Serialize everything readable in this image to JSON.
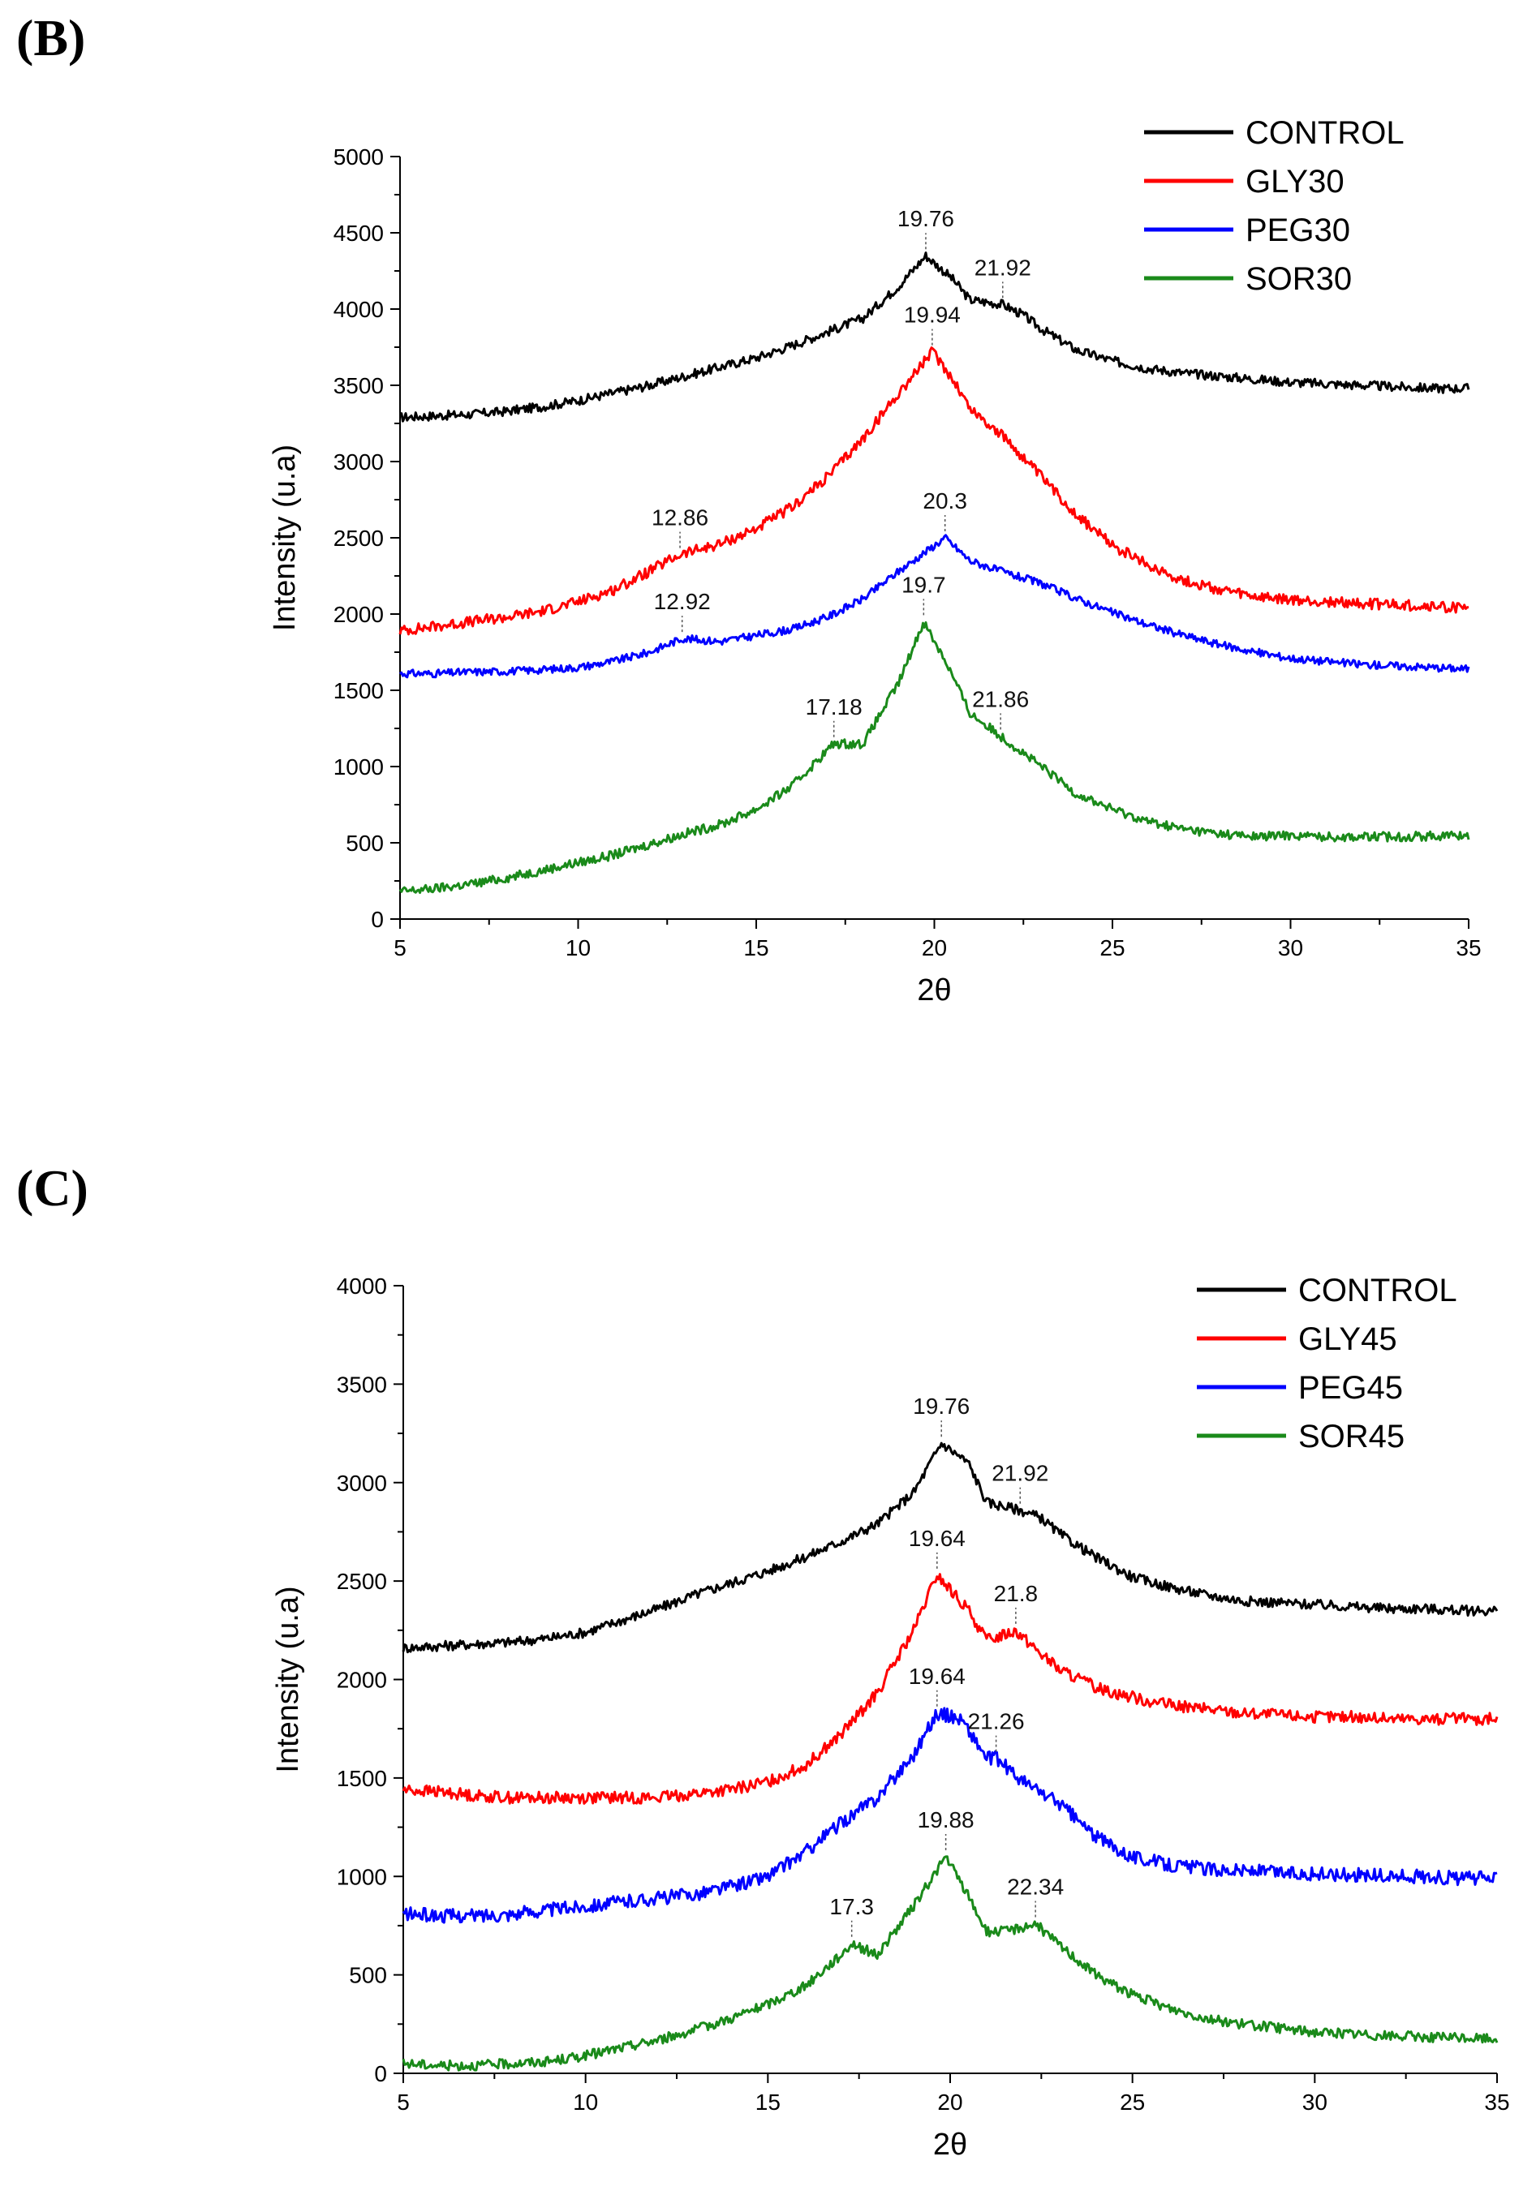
{
  "panels": [
    {
      "letter": "(B)"
    },
    {
      "letter": "(C)"
    }
  ],
  "chart_data": [
    {
      "type": "line",
      "panel": "(B)",
      "xlabel": "2θ",
      "ylabel": "Intensity (u.a)",
      "xlim": [
        5,
        35
      ],
      "ylim": [
        0,
        5000
      ],
      "xticks": [
        5,
        10,
        15,
        20,
        25,
        30,
        35
      ],
      "yticks": [
        0,
        500,
        1000,
        1500,
        2000,
        2500,
        3000,
        3500,
        4000,
        4500,
        5000
      ],
      "legend_position": "top-right",
      "series": [
        {
          "name": "CONTROL",
          "color": "#000000",
          "noise": 30,
          "x": [
            5,
            6,
            7,
            8,
            9,
            10,
            11,
            12,
            13,
            14,
            15,
            16,
            17,
            18,
            19,
            19.76,
            20.5,
            21,
            21.92,
            22.5,
            23,
            24,
            25,
            26,
            27,
            28,
            29,
            30,
            31,
            32,
            33,
            34,
            35
          ],
          "y": [
            3290,
            3300,
            3310,
            3330,
            3360,
            3400,
            3450,
            3500,
            3560,
            3620,
            3680,
            3760,
            3850,
            3940,
            4150,
            4350,
            4200,
            4060,
            4030,
            3960,
            3870,
            3730,
            3660,
            3610,
            3580,
            3560,
            3540,
            3520,
            3510,
            3500,
            3490,
            3480,
            3480
          ]
        },
        {
          "name": "GLY30",
          "color": "#ff0000",
          "noise": 35,
          "x": [
            5,
            6,
            7,
            8,
            9,
            10,
            11,
            12,
            12.86,
            14,
            15,
            16,
            17,
            18,
            19,
            19.94,
            20.5,
            21,
            22,
            23,
            24,
            25,
            26,
            27,
            28,
            29,
            30,
            31,
            32,
            33,
            34,
            35
          ],
          "y": [
            1890,
            1920,
            1950,
            1980,
            2020,
            2080,
            2160,
            2280,
            2390,
            2460,
            2560,
            2700,
            2900,
            3150,
            3450,
            3720,
            3550,
            3350,
            3150,
            2900,
            2650,
            2450,
            2320,
            2220,
            2160,
            2110,
            2090,
            2080,
            2070,
            2060,
            2050,
            2040
          ]
        },
        {
          "name": "PEG30",
          "color": "#0000ff",
          "noise": 25,
          "x": [
            5,
            6,
            7,
            8,
            9,
            10,
            11,
            12,
            12.92,
            14,
            15,
            16,
            17,
            18,
            19,
            20.3,
            21,
            22,
            23,
            24,
            25,
            26,
            27,
            28,
            29,
            30,
            31,
            32,
            33,
            34,
            35
          ],
          "y": [
            1610,
            1610,
            1620,
            1625,
            1635,
            1650,
            1690,
            1750,
            1840,
            1820,
            1860,
            1900,
            1980,
            2100,
            2280,
            2500,
            2350,
            2270,
            2200,
            2100,
            2010,
            1930,
            1860,
            1800,
            1750,
            1710,
            1690,
            1670,
            1660,
            1650,
            1640
          ]
        },
        {
          "name": "SOR30",
          "color": "#1a8a1a",
          "noise": 30,
          "x": [
            5,
            6,
            7,
            8,
            9,
            10,
            11,
            12,
            13,
            14,
            15,
            16,
            17.18,
            18,
            19,
            19.7,
            20.3,
            21,
            21.86,
            23,
            24,
            25,
            26,
            27,
            28,
            29,
            30,
            31,
            32,
            33,
            34,
            35
          ],
          "y": [
            180,
            200,
            230,
            270,
            320,
            370,
            420,
            490,
            560,
            620,
            720,
            870,
            1150,
            1150,
            1550,
            1950,
            1700,
            1350,
            1200,
            1000,
            820,
            720,
            640,
            590,
            560,
            540,
            550,
            540,
            540,
            540,
            545,
            550
          ]
        }
      ],
      "annotations": [
        {
          "text": "19.76",
          "x": 19.76,
          "series": 0
        },
        {
          "text": "21.92",
          "x": 21.92,
          "series": 0
        },
        {
          "text": "19.94",
          "x": 19.94,
          "series": 1
        },
        {
          "text": "12.86",
          "x": 12.86,
          "series": 1
        },
        {
          "text": "20.3",
          "x": 20.3,
          "series": 2
        },
        {
          "text": "12.92",
          "x": 12.92,
          "series": 2
        },
        {
          "text": "19.7",
          "x": 19.7,
          "series": 3
        },
        {
          "text": "17.18",
          "x": 17.18,
          "series": 3
        },
        {
          "text": "21.86",
          "x": 21.86,
          "series": 3
        }
      ]
    },
    {
      "type": "line",
      "panel": "(C)",
      "xlabel": "2θ",
      "ylabel": "Intensity (u.a)",
      "xlim": [
        5,
        35
      ],
      "ylim": [
        0,
        4000
      ],
      "xticks": [
        5,
        10,
        15,
        20,
        25,
        30,
        35
      ],
      "yticks": [
        0,
        500,
        1000,
        1500,
        2000,
        2500,
        3000,
        3500,
        4000
      ],
      "legend_position": "top-right",
      "series": [
        {
          "name": "CONTROL",
          "color": "#000000",
          "noise": 25,
          "x": [
            5,
            6,
            7,
            8,
            9,
            10,
            11,
            12,
            13,
            14,
            15,
            16,
            17,
            18,
            19,
            19.76,
            20.5,
            21,
            21.92,
            22.5,
            23,
            24,
            25,
            26,
            27,
            28,
            29,
            30,
            31,
            32,
            33,
            34,
            35
          ],
          "y": [
            2160,
            2170,
            2180,
            2190,
            2210,
            2240,
            2300,
            2360,
            2430,
            2490,
            2550,
            2620,
            2700,
            2790,
            2950,
            3200,
            3100,
            2900,
            2860,
            2820,
            2740,
            2620,
            2520,
            2470,
            2430,
            2400,
            2390,
            2380,
            2370,
            2360,
            2360,
            2350,
            2350
          ]
        },
        {
          "name": "GLY45",
          "color": "#ff0000",
          "noise": 30,
          "x": [
            5,
            6,
            7,
            8,
            9,
            10,
            11,
            12,
            13,
            14,
            15,
            16,
            17,
            18,
            19,
            19.64,
            20.5,
            21,
            21.8,
            22.5,
            23,
            24,
            25,
            26,
            27,
            28,
            29,
            30,
            31,
            32,
            33,
            34,
            35
          ],
          "y": [
            1440,
            1430,
            1410,
            1400,
            1400,
            1400,
            1400,
            1400,
            1420,
            1440,
            1480,
            1560,
            1720,
            1930,
            2250,
            2530,
            2350,
            2200,
            2250,
            2130,
            2050,
            1960,
            1910,
            1870,
            1850,
            1830,
            1820,
            1810,
            1810,
            1800,
            1800,
            1800,
            1800
          ]
        },
        {
          "name": "PEG45",
          "color": "#0000ff",
          "noise": 35,
          "x": [
            5,
            6,
            7,
            8,
            9,
            10,
            11,
            12,
            13,
            14,
            15,
            16,
            17,
            18,
            19,
            19.64,
            20.3,
            21,
            21.26,
            22,
            23,
            24,
            25,
            26,
            27,
            28,
            29,
            30,
            31,
            32,
            33,
            34,
            35
          ],
          "y": [
            810,
            800,
            800,
            810,
            830,
            850,
            870,
            890,
            910,
            950,
            1000,
            1120,
            1270,
            1400,
            1620,
            1830,
            1800,
            1600,
            1600,
            1480,
            1370,
            1200,
            1100,
            1060,
            1040,
            1030,
            1020,
            1010,
            1010,
            1000,
            1000,
            990,
            990
          ]
        },
        {
          "name": "SOR45",
          "color": "#1a8a1a",
          "noise": 25,
          "x": [
            5,
            6,
            7,
            8,
            9,
            10,
            11,
            12,
            13,
            14,
            15,
            16,
            17,
            17.3,
            18,
            19,
            19.88,
            20.5,
            21,
            21.5,
            22.34,
            23,
            24,
            25,
            26,
            27,
            28,
            29,
            30,
            31,
            32,
            33,
            34,
            35
          ],
          "y": [
            50,
            40,
            40,
            50,
            60,
            90,
            130,
            170,
            220,
            280,
            350,
            440,
            600,
            660,
            600,
            850,
            1100,
            900,
            720,
            720,
            760,
            650,
            500,
            400,
            330,
            280,
            250,
            230,
            210,
            200,
            190,
            185,
            180,
            175
          ]
        }
      ],
      "annotations": [
        {
          "text": "19.76",
          "x": 19.76,
          "series": 0
        },
        {
          "text": "21.92",
          "x": 21.92,
          "series": 0
        },
        {
          "text": "19.64",
          "x": 19.64,
          "series": 1
        },
        {
          "text": "21.8",
          "x": 21.8,
          "series": 1
        },
        {
          "text": "19.64",
          "x": 19.64,
          "series": 2
        },
        {
          "text": "21.26",
          "x": 21.26,
          "series": 2
        },
        {
          "text": "19.88",
          "x": 19.88,
          "series": 3
        },
        {
          "text": "17.3",
          "x": 17.3,
          "series": 3
        },
        {
          "text": "22.34",
          "x": 22.34,
          "series": 3
        }
      ]
    }
  ]
}
